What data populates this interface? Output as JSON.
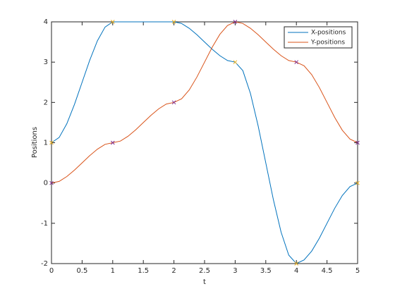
{
  "chart_data": {
    "type": "line",
    "xlabel": "t",
    "ylabel": "Positions",
    "x": [
      0,
      0.125,
      0.25,
      0.375,
      0.5,
      0.625,
      0.75,
      0.875,
      1,
      1.125,
      1.25,
      1.375,
      1.5,
      1.625,
      1.75,
      1.875,
      2,
      2.125,
      2.25,
      2.375,
      2.5,
      2.625,
      2.75,
      2.875,
      3,
      3.125,
      3.25,
      3.375,
      3.5,
      3.625,
      3.75,
      3.875,
      4,
      4.125,
      4.25,
      4.375,
      4.5,
      4.625,
      4.75,
      4.875,
      5
    ],
    "series": [
      {
        "name": "X-positions",
        "color": "#0072bd",
        "values": [
          1,
          1.13,
          1.47,
          1.95,
          2.5,
          3.05,
          3.53,
          3.87,
          4,
          4,
          4,
          4,
          4,
          4,
          4,
          4,
          4,
          3.96,
          3.84,
          3.68,
          3.5,
          3.32,
          3.16,
          3.04,
          3,
          2.79,
          2.22,
          1.42,
          0.5,
          -0.42,
          -1.22,
          -1.79,
          -2,
          -1.91,
          -1.69,
          -1.37,
          -1,
          -0.63,
          -0.31,
          -0.09,
          0
        ]
      },
      {
        "name": "Y-positions",
        "color": "#d95319",
        "values": [
          0,
          0.04,
          0.16,
          0.32,
          0.5,
          0.68,
          0.84,
          0.96,
          1,
          1.04,
          1.16,
          1.32,
          1.5,
          1.68,
          1.84,
          1.96,
          2,
          2.09,
          2.31,
          2.63,
          3,
          3.37,
          3.69,
          3.91,
          4,
          3.96,
          3.84,
          3.68,
          3.5,
          3.32,
          3.16,
          3.04,
          3,
          2.91,
          2.69,
          2.37,
          2,
          1.63,
          1.31,
          1.09,
          1
        ]
      }
    ],
    "marker_x": [
      0,
      1,
      2,
      3,
      4,
      5
    ],
    "markers": [
      {
        "color": "#edb120",
        "values": [
          1,
          4,
          4,
          3,
          -2,
          0
        ]
      },
      {
        "color": "#7e2f8e",
        "values": [
          0,
          1,
          2,
          4,
          3,
          1
        ]
      }
    ],
    "xlim": [
      0,
      5
    ],
    "xticks": [
      0,
      0.5,
      1,
      1.5,
      2,
      2.5,
      3,
      3.5,
      4,
      4.5,
      5
    ],
    "ylim": [
      -2,
      4
    ],
    "yticks": [
      -2,
      -1,
      0,
      1,
      2,
      3,
      4
    ],
    "legend": "top-right",
    "grid": false
  }
}
